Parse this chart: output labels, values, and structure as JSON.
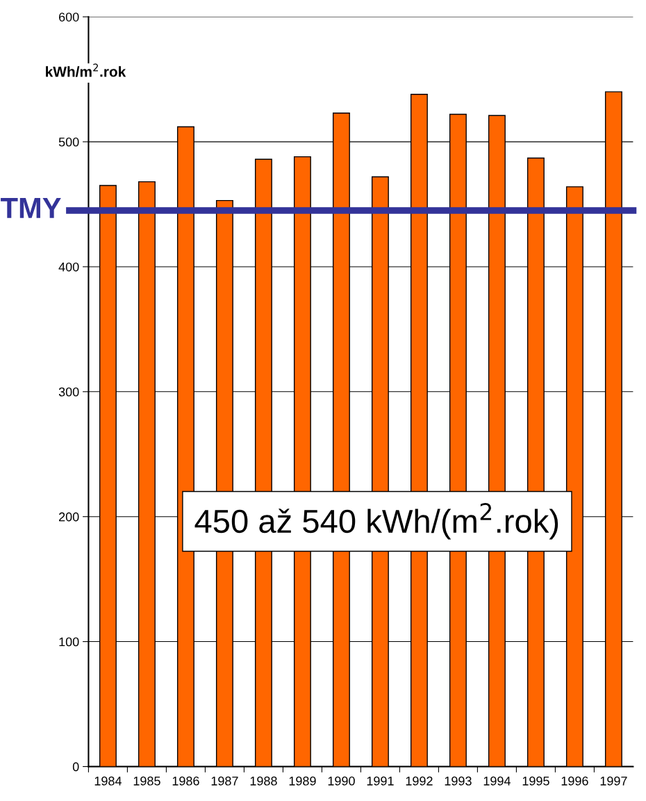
{
  "chart_data": {
    "type": "bar",
    "ylabel": "kWh/m$^{2}$.rok",
    "categories": [
      "1984",
      "1985",
      "1986",
      "1987",
      "1988",
      "1989",
      "1990",
      "1991",
      "1992",
      "1993",
      "1994",
      "1995",
      "1996",
      "1997"
    ],
    "values": [
      465,
      468,
      512,
      453,
      486,
      488,
      523,
      472,
      538,
      522,
      521,
      487,
      464,
      540
    ],
    "color": "#ff6600",
    "ylim": [
      0,
      600
    ],
    "yticks": [
      0,
      100,
      200,
      300,
      400,
      500,
      600
    ],
    "grid": "y",
    "ref_lines": [
      {
        "axis": "y",
        "value": 445,
        "label": "TMY",
        "color": "#333399"
      }
    ],
    "annotations": [
      "450 až 540 kWh/(m$^{2}$.rok)"
    ]
  }
}
